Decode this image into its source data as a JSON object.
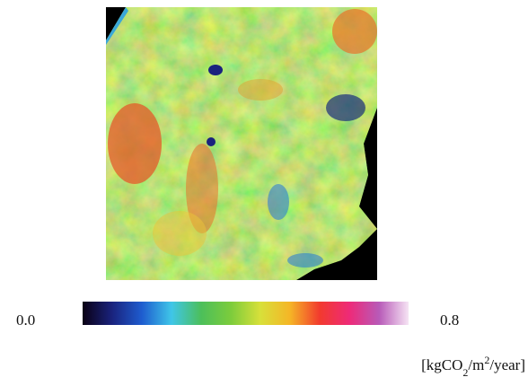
{
  "colorbar": {
    "min": {
      "value": 0,
      "label": "0.0"
    },
    "max": {
      "value": 0.8,
      "label": "0.8"
    },
    "colors": [
      "#0a0014",
      "#1a237e",
      "#1e5ccf",
      "#3fc6e8",
      "#4cbf5a",
      "#7ccc3c",
      "#d8e03a",
      "#f5b526",
      "#f23a2e",
      "#ee2a78",
      "#b85ab8",
      "#f6e4f4"
    ],
    "unit": [
      "[kgCO",
      "2",
      "/m",
      "2",
      "/year]"
    ]
  }
}
